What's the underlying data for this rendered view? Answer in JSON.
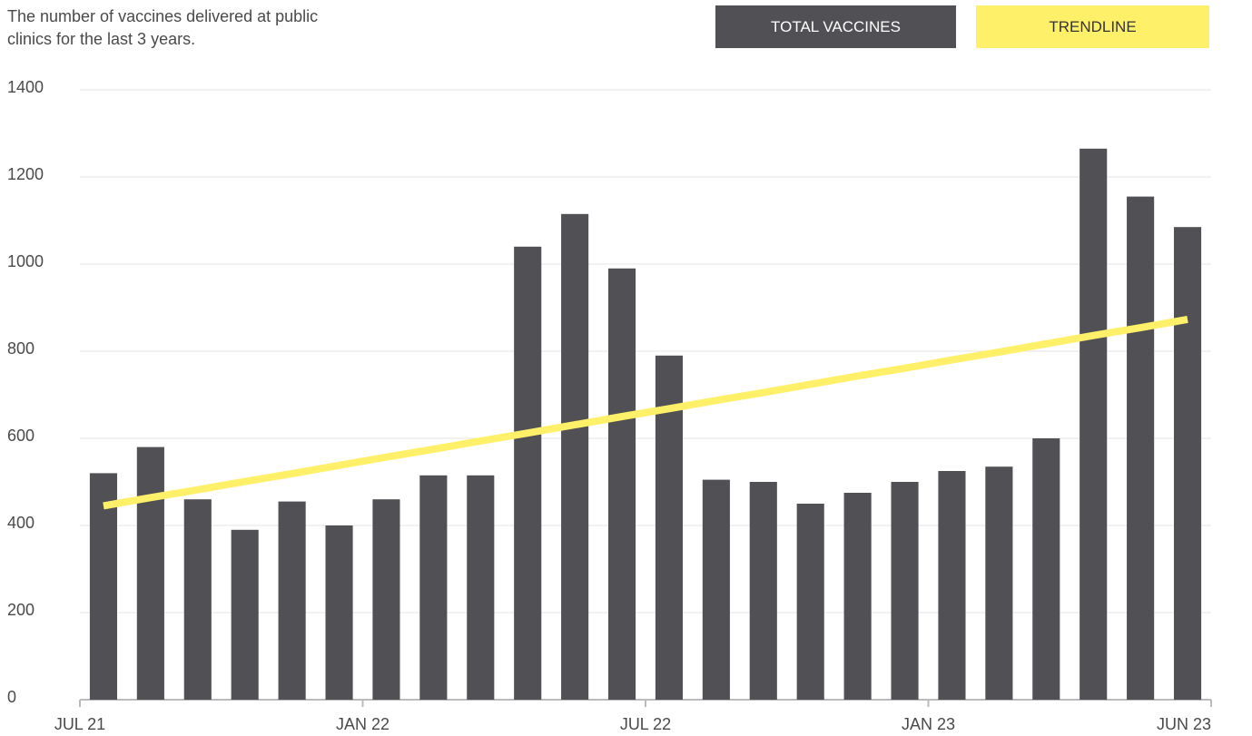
{
  "chart_data": {
    "type": "bar",
    "title": "The number of vaccines delivered at public clinics for the last 3 years.",
    "categories": [
      "JUL 21",
      null,
      null,
      null,
      null,
      null,
      "JAN 22",
      null,
      null,
      null,
      null,
      null,
      "JUL 22",
      null,
      null,
      null,
      null,
      null,
      "JAN 23",
      null,
      null,
      null,
      null,
      "JUN 23"
    ],
    "series": [
      {
        "name": "TOTAL VACCINES",
        "type": "bar",
        "color": "#515155",
        "values": [
          520,
          580,
          460,
          390,
          455,
          400,
          460,
          515,
          515,
          1040,
          1115,
          990,
          790,
          505,
          500,
          450,
          475,
          500,
          525,
          535,
          600,
          1265,
          1155,
          1085
        ]
      },
      {
        "name": "TRENDLINE",
        "type": "line",
        "color": "#fff06a",
        "values": [
          445,
          464,
          482,
          501,
          519,
          538,
          557,
          575,
          594,
          612,
          631,
          650,
          668,
          687,
          705,
          724,
          743,
          761,
          780,
          798,
          817,
          836,
          854,
          873
        ]
      }
    ],
    "ylim": [
      0,
      1400
    ],
    "yticks": [
      0,
      200,
      400,
      600,
      800,
      1000,
      1200,
      1400
    ],
    "grid": true
  }
}
